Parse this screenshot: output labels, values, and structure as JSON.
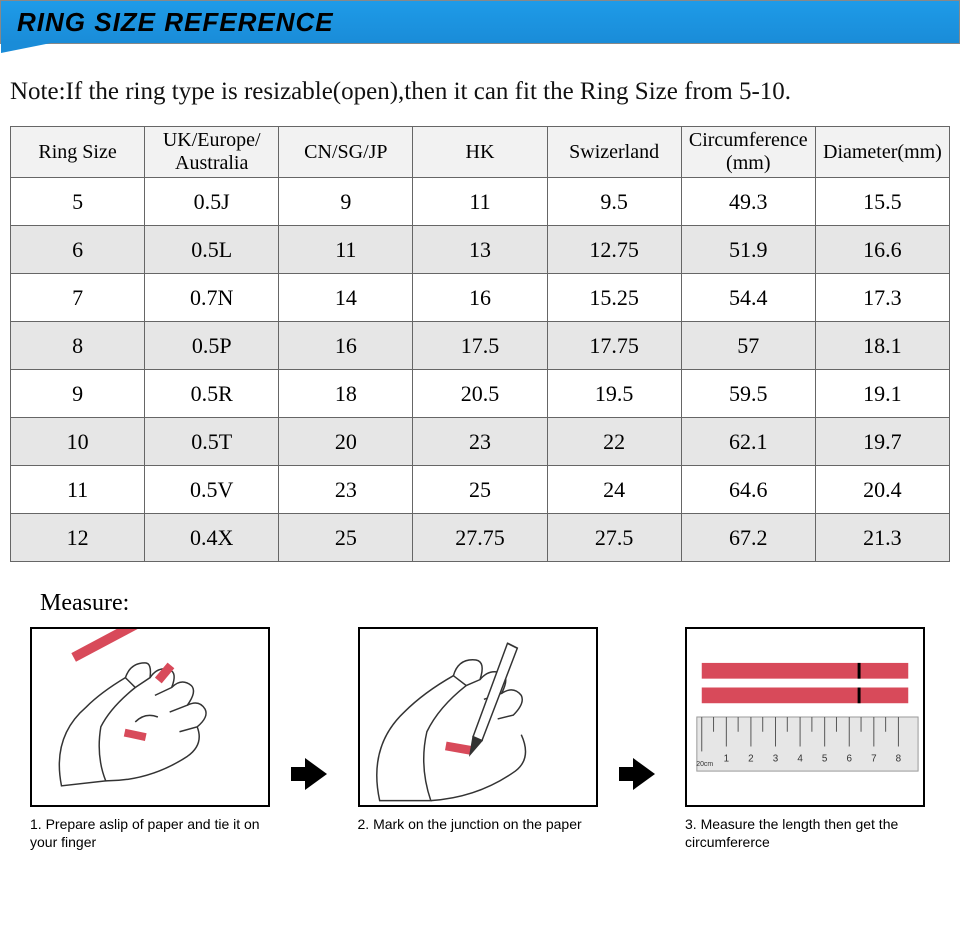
{
  "header": {
    "title": "RING SIZE REFERENCE"
  },
  "note": "Note:If the ring type is resizable(open),then it can fit the Ring Size from 5-10.",
  "table": {
    "columns": [
      "Ring Size",
      "UK/Europe/\nAustralia",
      "CN/SG/JP",
      "HK",
      "Swizerland",
      "Circumference\n(mm)",
      "Diameter(mm)"
    ],
    "rows": [
      [
        "5",
        "0.5J",
        "9",
        "11",
        "9.5",
        "49.3",
        "15.5"
      ],
      [
        "6",
        "0.5L",
        "11",
        "13",
        "12.75",
        "51.9",
        "16.6"
      ],
      [
        "7",
        "0.7N",
        "14",
        "16",
        "15.25",
        "54.4",
        "17.3"
      ],
      [
        "8",
        "0.5P",
        "16",
        "17.5",
        "17.75",
        "57",
        "18.1"
      ],
      [
        "9",
        "0.5R",
        "18",
        "20.5",
        "19.5",
        "59.5",
        "19.1"
      ],
      [
        "10",
        "0.5T",
        "20",
        "23",
        "22",
        "62.1",
        "19.7"
      ],
      [
        "11",
        "0.5V",
        "23",
        "25",
        "24",
        "64.6",
        "20.4"
      ],
      [
        "12",
        "0.4X",
        "25",
        "27.75",
        "27.5",
        "67.2",
        "21.3"
      ]
    ]
  },
  "measure": {
    "label": "Measure:",
    "steps": [
      "1. Prepare aslip of paper and tie it on your finger",
      "2. Mark on the junction on the paper",
      "3. Measure the length then get the circumfererce"
    ]
  },
  "colors": {
    "header_gradient_top": "#1e9be8",
    "header_gradient_bottom": "#1a8cd8",
    "table_border": "#666666",
    "row_even": "#e6e6e6",
    "row_odd": "#ffffff",
    "th_bg": "#f2f2f2",
    "strip": "#d84a5a",
    "ruler_bg": "#e6e6e6"
  }
}
